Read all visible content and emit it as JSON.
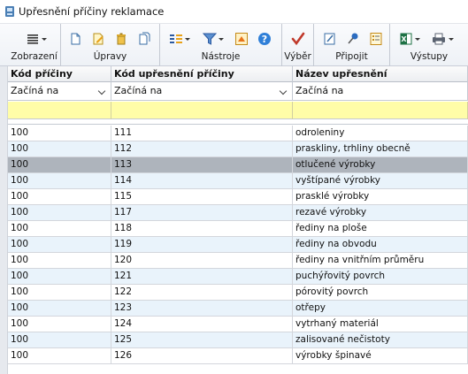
{
  "window": {
    "title": "Upřesnění příčiny reklamace"
  },
  "ribbon": {
    "groups": [
      {
        "label": "Zobrazení"
      },
      {
        "label": "Úpravy"
      },
      {
        "label": "Nástroje"
      },
      {
        "label": "Výběr"
      },
      {
        "label": "Připojit"
      },
      {
        "label": "Výstupy"
      }
    ]
  },
  "grid": {
    "columns": [
      "Kód příčiny",
      "Kód upřesnění příčiny",
      "Název upřesnění"
    ],
    "filters": [
      "Začíná na",
      "Začíná na",
      "Začíná na"
    ],
    "rows": [
      {
        "kod": "100",
        "kod_upresneni": "111",
        "nazev": "odroleniny"
      },
      {
        "kod": "100",
        "kod_upresneni": "112",
        "nazev": "praskliny, trhliny obecně"
      },
      {
        "kod": "100",
        "kod_upresneni": "113",
        "nazev": "otlučené výrobky"
      },
      {
        "kod": "100",
        "kod_upresneni": "114",
        "nazev": "vyštípané výrobky"
      },
      {
        "kod": "100",
        "kod_upresneni": "115",
        "nazev": "prasklé výrobky"
      },
      {
        "kod": "100",
        "kod_upresneni": "117",
        "nazev": "rezavé výrobky"
      },
      {
        "kod": "100",
        "kod_upresneni": "118",
        "nazev": "řediny na ploše"
      },
      {
        "kod": "100",
        "kod_upresneni": "119",
        "nazev": "řediny na obvodu"
      },
      {
        "kod": "100",
        "kod_upresneni": "120",
        "nazev": "řediny na vnitřním průměru"
      },
      {
        "kod": "100",
        "kod_upresneni": "121",
        "nazev": "puchýřovitý povrch"
      },
      {
        "kod": "100",
        "kod_upresneni": "122",
        "nazev": "pórovitý povrch"
      },
      {
        "kod": "100",
        "kod_upresneni": "123",
        "nazev": "otřepy"
      },
      {
        "kod": "100",
        "kod_upresneni": "124",
        "nazev": "vytrhaný materiál"
      },
      {
        "kod": "100",
        "kod_upresneni": "125",
        "nazev": "zalisované nečistoty"
      },
      {
        "kod": "100",
        "kod_upresneni": "126",
        "nazev": "výrobky špinavé"
      }
    ],
    "selected_row_index": 2
  },
  "colors": {
    "selected_row": "#aeb4bc",
    "alt_row": "#e9f3fb",
    "filter_row_yellow": "#fffda8"
  }
}
